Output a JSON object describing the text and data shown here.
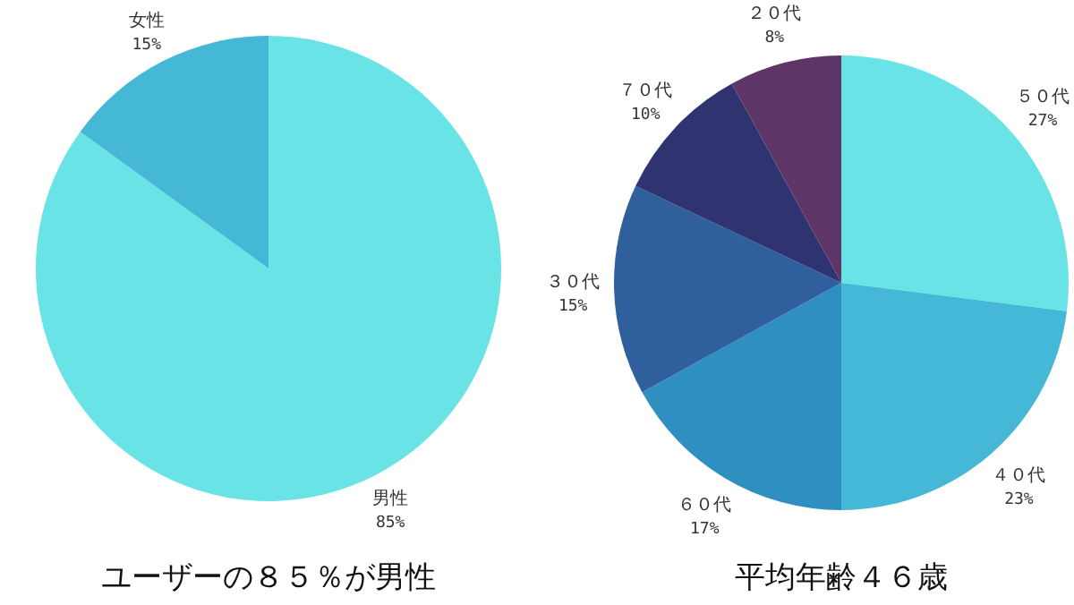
{
  "chart_data": [
    {
      "type": "pie",
      "title": "ユーザーの８５％が男性",
      "categories": [
        "男性",
        "女性"
      ],
      "values": [
        85,
        15
      ],
      "value_labels": [
        "85%",
        "15%"
      ],
      "colors": [
        "#6ae3e6",
        "#45b8d6"
      ]
    },
    {
      "type": "pie",
      "title": "平均年齢４６歳",
      "categories": [
        "５０代",
        "４０代",
        "６０代",
        "３０代",
        "７０代",
        "２０代"
      ],
      "values": [
        27,
        23,
        17,
        15,
        10,
        8
      ],
      "value_labels": [
        "27%",
        "23%",
        "17%",
        "15%",
        "10%",
        "8%"
      ],
      "colors": [
        "#6ae3e6",
        "#44b8d6",
        "#2e8fc0",
        "#2f5f9c",
        "#2f3470",
        "#5d3566"
      ]
    }
  ]
}
